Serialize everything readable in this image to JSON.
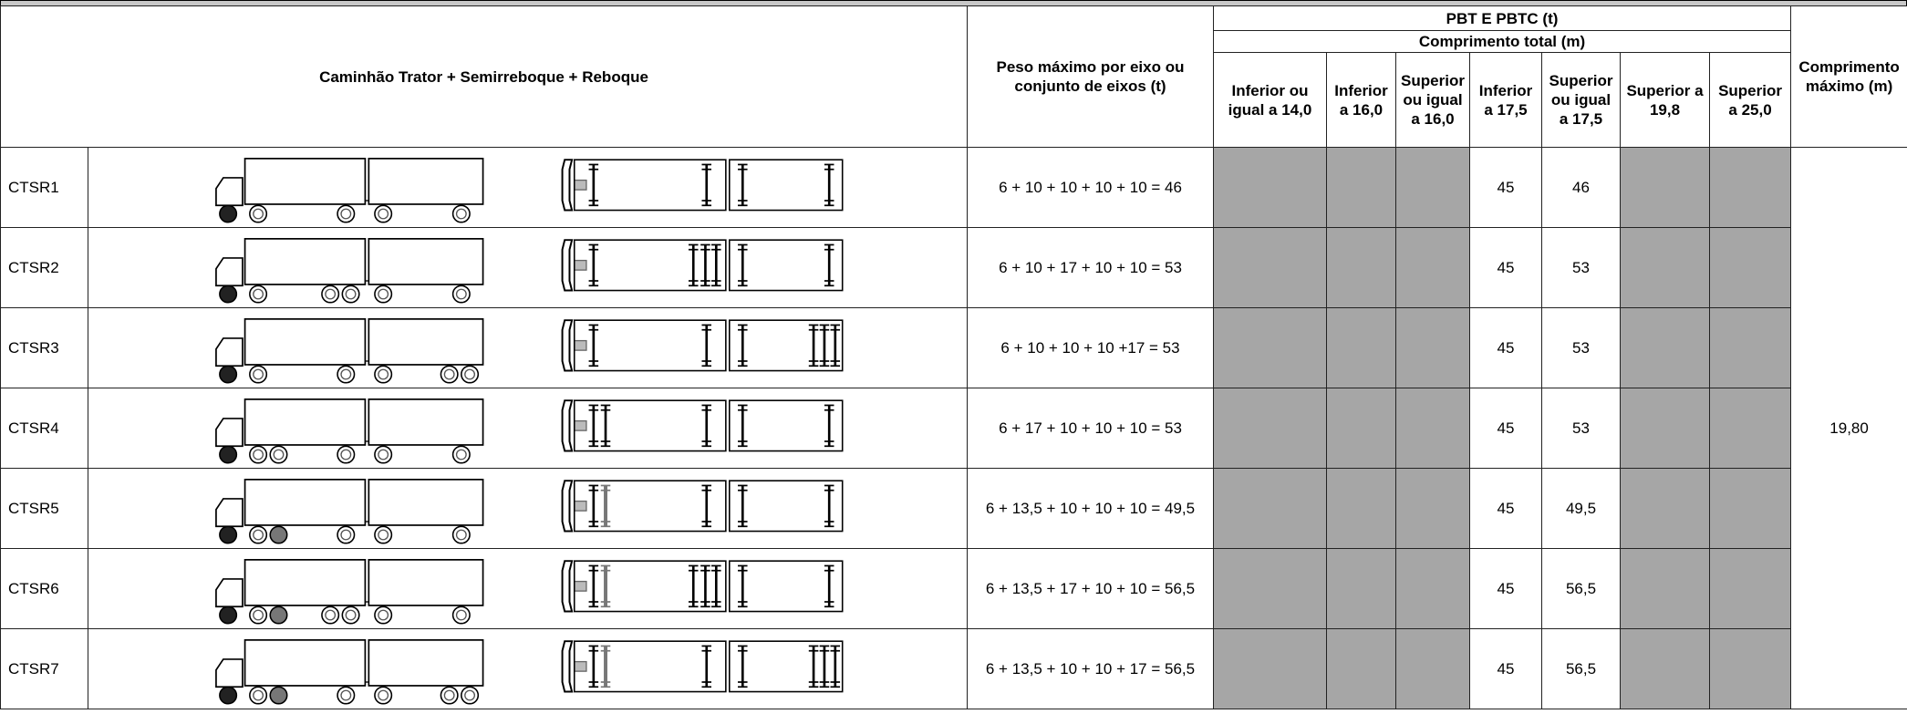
{
  "header": {
    "group": "Caminhão Trator + Semirreboque + Reboque",
    "weight": "Peso máximo por eixo ou conjunto de eixos (t)",
    "pbt": "PBT E PBTC (t)",
    "length_total": "Comprimento total (m)",
    "length_columns": [
      "Inferior ou igual a 14,0",
      "Inferior a 16,0",
      "Superior ou igual a 16,0",
      "Inferior a 17,5",
      "Superior ou igual a 17,5",
      "Superior a 19,8",
      "Superior a 25,0"
    ],
    "max_length": "Comprimento máximo (m)"
  },
  "max_length_value": "19,80",
  "rows": [
    {
      "code": "CTSR1",
      "formula": "6 + 10 + 10 + 10 + 10 = 46",
      "below_17_5": "45",
      "from_17_5": "46"
    },
    {
      "code": "CTSR2",
      "formula": "6 + 10 + 17 + 10 + 10 = 53",
      "below_17_5": "45",
      "from_17_5": "53"
    },
    {
      "code": "CTSR3",
      "formula": "6 + 10 + 10 + 10 +17 = 53",
      "below_17_5": "45",
      "from_17_5": "53"
    },
    {
      "code": "CTSR4",
      "formula": "6 + 17 + 10 + 10 + 10 = 53",
      "below_17_5": "45",
      "from_17_5": "53"
    },
    {
      "code": "CTSR5",
      "formula": "6 + 13,5 + 10 + 10 + 10 = 49,5",
      "below_17_5": "45",
      "from_17_5": "49,5"
    },
    {
      "code": "CTSR6",
      "formula": "6 + 13,5 + 17 + 10 + 10 = 56,5",
      "below_17_5": "45",
      "from_17_5": "56,5"
    },
    {
      "code": "CTSR7",
      "formula": "6 + 13,5 + 10 + 10 + 17 = 56,5",
      "below_17_5": "45",
      "from_17_5": "56,5"
    }
  ]
}
